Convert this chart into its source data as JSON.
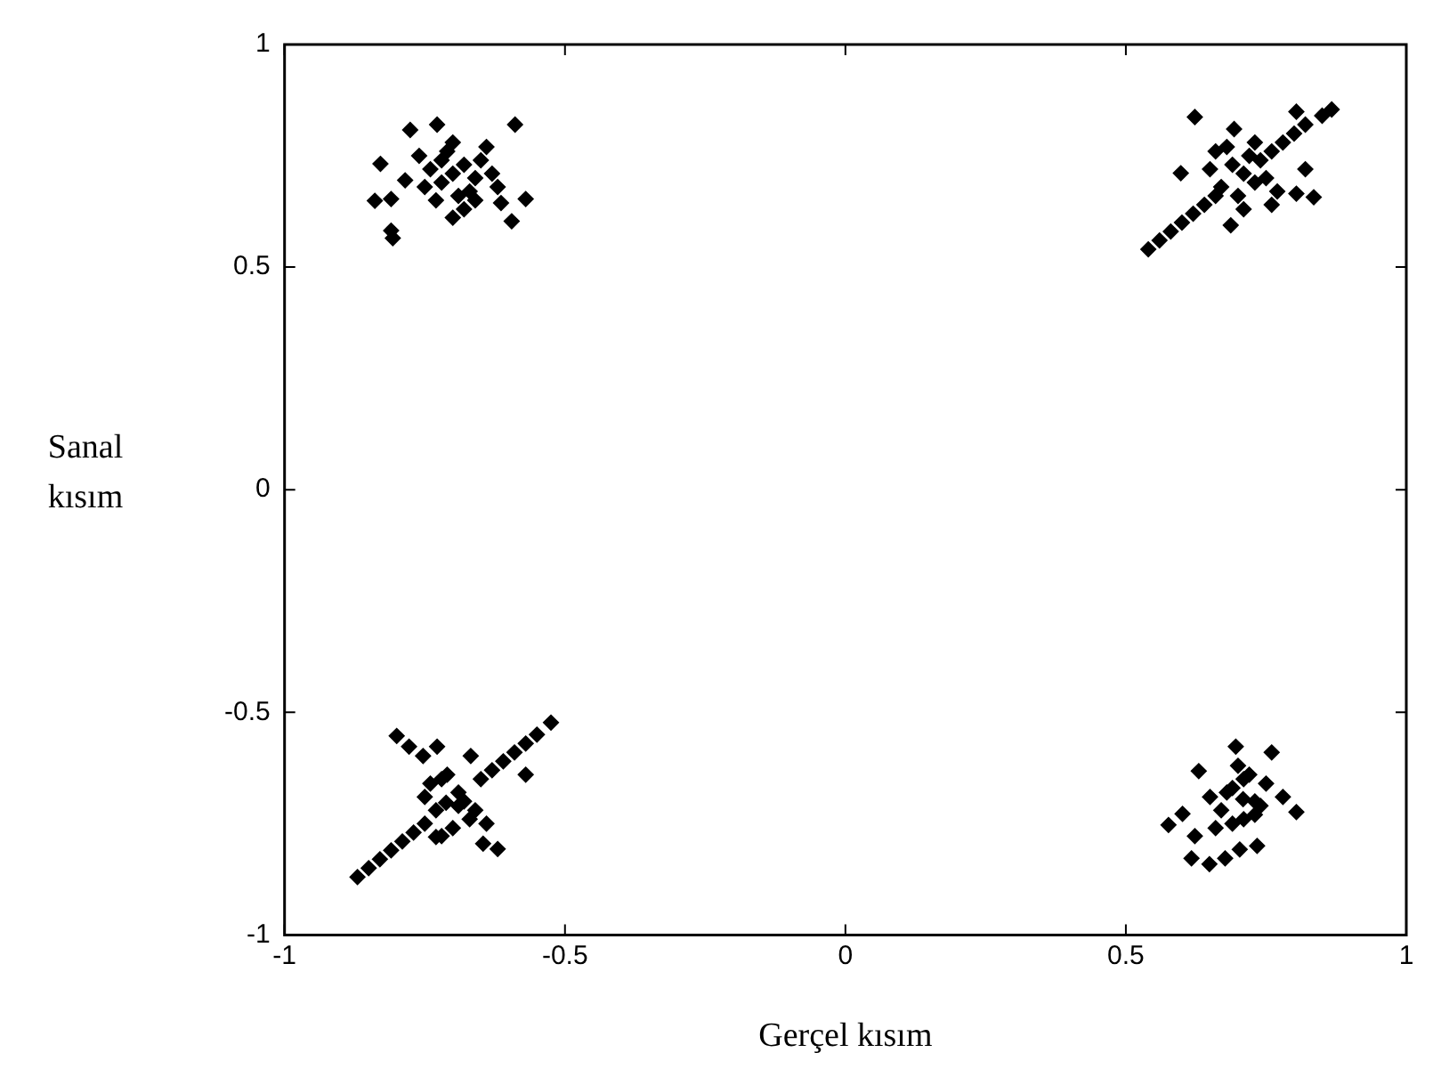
{
  "chart_data": {
    "type": "scatter",
    "xlabel": "Gerçel kısım",
    "ylabel": "Sanal kısım",
    "xlim": [
      -1,
      1
    ],
    "ylim": [
      -1,
      1
    ],
    "xticks": [
      -1,
      -0.5,
      0,
      0.5,
      1
    ],
    "yticks": [
      -1,
      -0.5,
      0,
      0.5,
      1
    ],
    "grid": false,
    "marker": "diamond",
    "legend": false,
    "series": [
      {
        "color": "#000000",
        "x": [
          -0.7,
          -0.68,
          -0.72,
          -0.66,
          -0.74,
          -0.69,
          -0.71,
          -0.65,
          -0.73,
          -0.67,
          -0.63,
          -0.75,
          -0.7,
          -0.64,
          -0.68,
          -0.72,
          -0.66,
          -0.62,
          -0.76,
          -0.776,
          -0.728,
          -0.589,
          -0.829,
          -0.785,
          -0.839,
          -0.81,
          -0.81,
          -0.807,
          -0.614,
          -0.57,
          -0.595,
          -0.7,
          0.54,
          0.56,
          0.58,
          0.6,
          0.62,
          0.64,
          0.66,
          0.76,
          0.78,
          0.8,
          0.82,
          0.85,
          0.623,
          0.804,
          0.867,
          0.598,
          0.82,
          0.835,
          0.804,
          0.687,
          0.693,
          0.71,
          0.73,
          0.69,
          0.75,
          0.67,
          0.72,
          0.7,
          0.74,
          0.68,
          0.77,
          0.65,
          0.76,
          0.71,
          0.66,
          0.73,
          -0.87,
          -0.85,
          -0.83,
          -0.81,
          -0.79,
          -0.77,
          -0.75,
          -0.65,
          -0.63,
          -0.61,
          -0.59,
          -0.57,
          -0.55,
          -0.525,
          -0.8,
          -0.778,
          -0.753,
          -0.728,
          -0.668,
          -0.57,
          -0.62,
          -0.646,
          -0.72,
          -0.712,
          -0.69,
          -0.73,
          -0.67,
          -0.74,
          -0.7,
          -0.68,
          -0.72,
          -0.66,
          -0.75,
          -0.71,
          -0.64,
          -0.69,
          -0.73,
          0.709,
          0.576,
          0.601,
          0.63,
          0.696,
          0.76,
          0.804,
          0.617,
          0.649,
          0.677,
          0.734,
          0.703,
          0.623,
          0.69,
          0.73,
          0.67,
          0.75,
          0.71,
          0.68,
          0.72,
          0.66,
          0.74,
          0.7,
          0.78,
          0.65,
          0.69,
          0.73,
          0.71
        ],
        "values": [
          0.71,
          0.73,
          0.69,
          0.7,
          0.72,
          0.66,
          0.76,
          0.74,
          0.65,
          0.67,
          0.71,
          0.68,
          0.78,
          0.77,
          0.63,
          0.74,
          0.65,
          0.68,
          0.75,
          0.808,
          0.82,
          0.82,
          0.732,
          0.695,
          0.649,
          0.653,
          0.582,
          0.565,
          0.644,
          0.653,
          0.603,
          0.611,
          0.54,
          0.56,
          0.58,
          0.6,
          0.62,
          0.64,
          0.66,
          0.76,
          0.78,
          0.8,
          0.82,
          0.84,
          0.837,
          0.849,
          0.854,
          0.711,
          0.72,
          0.657,
          0.665,
          0.594,
          0.81,
          0.71,
          0.69,
          0.73,
          0.7,
          0.68,
          0.75,
          0.66,
          0.74,
          0.77,
          0.67,
          0.72,
          0.64,
          0.63,
          0.76,
          0.78,
          -0.87,
          -0.85,
          -0.83,
          -0.81,
          -0.79,
          -0.77,
          -0.75,
          -0.65,
          -0.63,
          -0.61,
          -0.59,
          -0.57,
          -0.55,
          -0.523,
          -0.553,
          -0.577,
          -0.598,
          -0.577,
          -0.598,
          -0.64,
          -0.807,
          -0.795,
          -0.778,
          -0.703,
          -0.68,
          -0.72,
          -0.74,
          -0.66,
          -0.76,
          -0.7,
          -0.65,
          -0.72,
          -0.69,
          -0.64,
          -0.75,
          -0.71,
          -0.78,
          -0.695,
          -0.753,
          -0.728,
          -0.632,
          -0.577,
          -0.59,
          -0.724,
          -0.828,
          -0.841,
          -0.828,
          -0.8,
          -0.808,
          -0.778,
          -0.67,
          -0.7,
          -0.72,
          -0.66,
          -0.74,
          -0.68,
          -0.64,
          -0.76,
          -0.71,
          -0.62,
          -0.69,
          -0.69,
          -0.75,
          -0.73,
          -0.65
        ]
      }
    ]
  }
}
